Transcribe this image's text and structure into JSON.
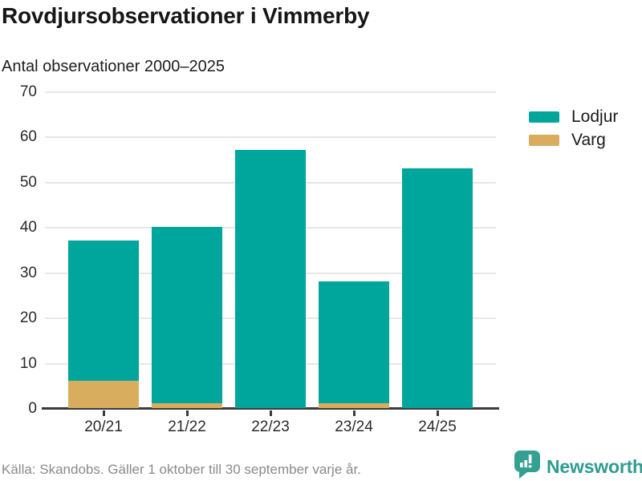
{
  "header": {
    "title": "Rovdjursobservationer i Vimmerby",
    "subtitle": "Antal observationer 2000–2025"
  },
  "chart_data": {
    "type": "bar",
    "stacked": true,
    "categories": [
      "20/21",
      "21/22",
      "22/23",
      "23/24",
      "24/25"
    ],
    "series": [
      {
        "name": "Lodjur",
        "color": "#00a69b",
        "values": [
          31,
          39,
          57,
          27,
          53
        ]
      },
      {
        "name": "Varg",
        "color": "#d9ad5e",
        "values": [
          6,
          1,
          0,
          1,
          0
        ]
      }
    ],
    "stack_totals": [
      37,
      40,
      57,
      28,
      53
    ],
    "ylim": [
      0,
      70
    ],
    "yticks": [
      0,
      10,
      20,
      30,
      40,
      50,
      60,
      70
    ],
    "grid": true,
    "legend_position": "right"
  },
  "footer": {
    "source": "Källa: Skandobs. Gäller 1 oktober till 30 september varje år.",
    "brand": "Newsworthy"
  },
  "colors": {
    "lodjur": "#00a69b",
    "varg": "#d9ad5e",
    "brand_teal": "#2f9c8f",
    "logo_teal": "#35a092",
    "gridline": "#e7e7e7",
    "axis": "#3b3b3b",
    "text_dark": "#161616",
    "text_muted": "#8a8a8a"
  }
}
